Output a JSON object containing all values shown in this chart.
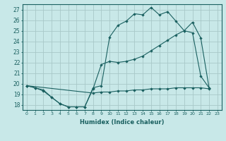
{
  "background_color": "#c8e8e8",
  "grid_color": "#a8c8c8",
  "line_color": "#1a6060",
  "xlabel": "Humidex (Indice chaleur)",
  "xlim": [
    -0.5,
    23.5
  ],
  "ylim": [
    17.5,
    27.5
  ],
  "yticks": [
    18,
    19,
    20,
    21,
    22,
    23,
    24,
    25,
    26,
    27
  ],
  "xticks": [
    0,
    1,
    2,
    3,
    4,
    5,
    6,
    7,
    8,
    9,
    10,
    11,
    12,
    13,
    14,
    15,
    16,
    17,
    18,
    19,
    20,
    21,
    22,
    23
  ],
  "line1_x": [
    0,
    1,
    2,
    3,
    4,
    5,
    6,
    7,
    8,
    9,
    10,
    11,
    12,
    13,
    14,
    15,
    16,
    17,
    18,
    19,
    20,
    21,
    22
  ],
  "line1_y": [
    19.8,
    19.6,
    19.4,
    18.7,
    18.1,
    17.8,
    17.8,
    17.8,
    19.6,
    19.8,
    24.4,
    25.5,
    25.9,
    26.6,
    26.5,
    27.2,
    26.5,
    26.8,
    25.9,
    25.0,
    24.8,
    20.7,
    19.6
  ],
  "line2_x": [
    0,
    1,
    2,
    3,
    4,
    5,
    6,
    7,
    8,
    9,
    10,
    11,
    12,
    13,
    14,
    15,
    16,
    17,
    18,
    19,
    20,
    21,
    22
  ],
  "line2_y": [
    19.8,
    19.6,
    19.3,
    18.7,
    18.1,
    17.8,
    17.8,
    17.8,
    19.5,
    21.8,
    22.1,
    22.0,
    22.1,
    22.3,
    22.6,
    23.1,
    23.6,
    24.1,
    24.6,
    25.0,
    25.8,
    24.3,
    19.6
  ],
  "line3_x": [
    0,
    8,
    9,
    10,
    11,
    12,
    13,
    14,
    15,
    16,
    17,
    18,
    19,
    20,
    21,
    22
  ],
  "line3_y": [
    19.8,
    19.1,
    19.2,
    19.2,
    19.3,
    19.3,
    19.4,
    19.4,
    19.5,
    19.5,
    19.5,
    19.6,
    19.6,
    19.6,
    19.6,
    19.5
  ]
}
